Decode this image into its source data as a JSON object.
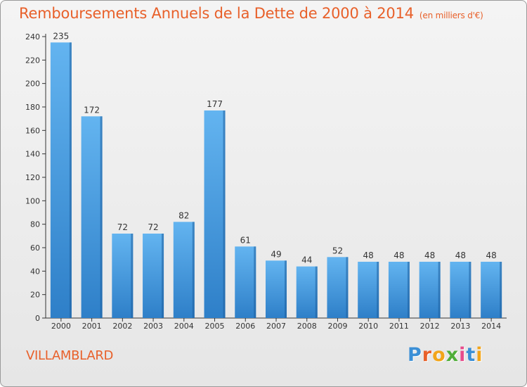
{
  "header": {
    "title": "Remboursements Annuels de la Dette de 2000 à 2014",
    "unit": "(en milliers d'€)"
  },
  "footer": {
    "commune": "VILLAMBLARD",
    "logo": "Proxiti",
    "logo_colors": [
      "#3b8fd6",
      "#e8602a",
      "#f2a51a",
      "#4fae3a",
      "#e84c8b",
      "#3b8fd6",
      "#f2a51a"
    ]
  },
  "colors": {
    "bar_light": "#63b4f0",
    "bar_dark": "#2e7fc8",
    "bar_side": "#1e5f9e",
    "title": "#e8602a"
  },
  "chart_data": {
    "type": "bar",
    "title": "Remboursements Annuels de la Dette de 2000 à 2014",
    "xlabel": "",
    "ylabel": "",
    "categories": [
      "2000",
      "2001",
      "2002",
      "2003",
      "2004",
      "2005",
      "2006",
      "2007",
      "2008",
      "2009",
      "2010",
      "2011",
      "2012",
      "2013",
      "2014"
    ],
    "values": [
      235,
      172,
      72,
      72,
      82,
      177,
      61,
      49,
      44,
      52,
      48,
      48,
      48,
      48,
      48
    ],
    "ylim": [
      0,
      240
    ],
    "yticks": [
      0,
      20,
      40,
      60,
      80,
      100,
      120,
      140,
      160,
      180,
      200,
      220,
      240
    ],
    "grid": false,
    "legend": "none"
  }
}
